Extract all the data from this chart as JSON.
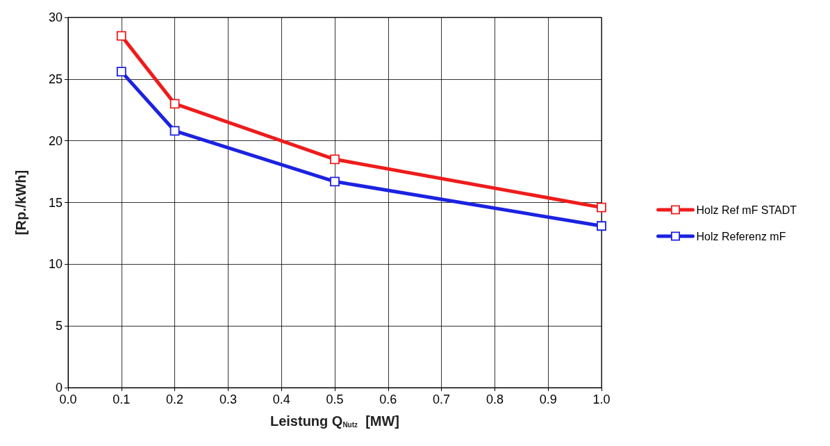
{
  "chart_data": {
    "type": "line",
    "xlabel": "Leistung Q$_{Nutz}$  [MW]",
    "ylabel": "[Rp./kWh]",
    "x": [
      0.1,
      0.2,
      0.5,
      1.0
    ],
    "series": [
      {
        "name": "Holz Ref mF STADT",
        "color": "#ee1c1c",
        "values": [
          28.5,
          23.0,
          18.5,
          14.6
        ]
      },
      {
        "name": "Holz Referenz mF",
        "color": "#1c22e0",
        "values": [
          25.6,
          20.8,
          16.7,
          13.1
        ]
      }
    ],
    "xlim": [
      0,
      1
    ],
    "xticks": [
      {
        "value": 0,
        "label": "0.0"
      },
      0.1,
      0.2,
      0.3,
      0.4,
      0.5,
      0.6,
      0.7,
      0.8,
      0.9,
      {
        "value": 1,
        "label": "1.0"
      }
    ],
    "ylim": [
      0,
      30
    ],
    "yticks": [
      0,
      5,
      10,
      15,
      20,
      25,
      30
    ],
    "grid": true,
    "legend": "right",
    "marker": "square",
    "line_style": "solid"
  }
}
